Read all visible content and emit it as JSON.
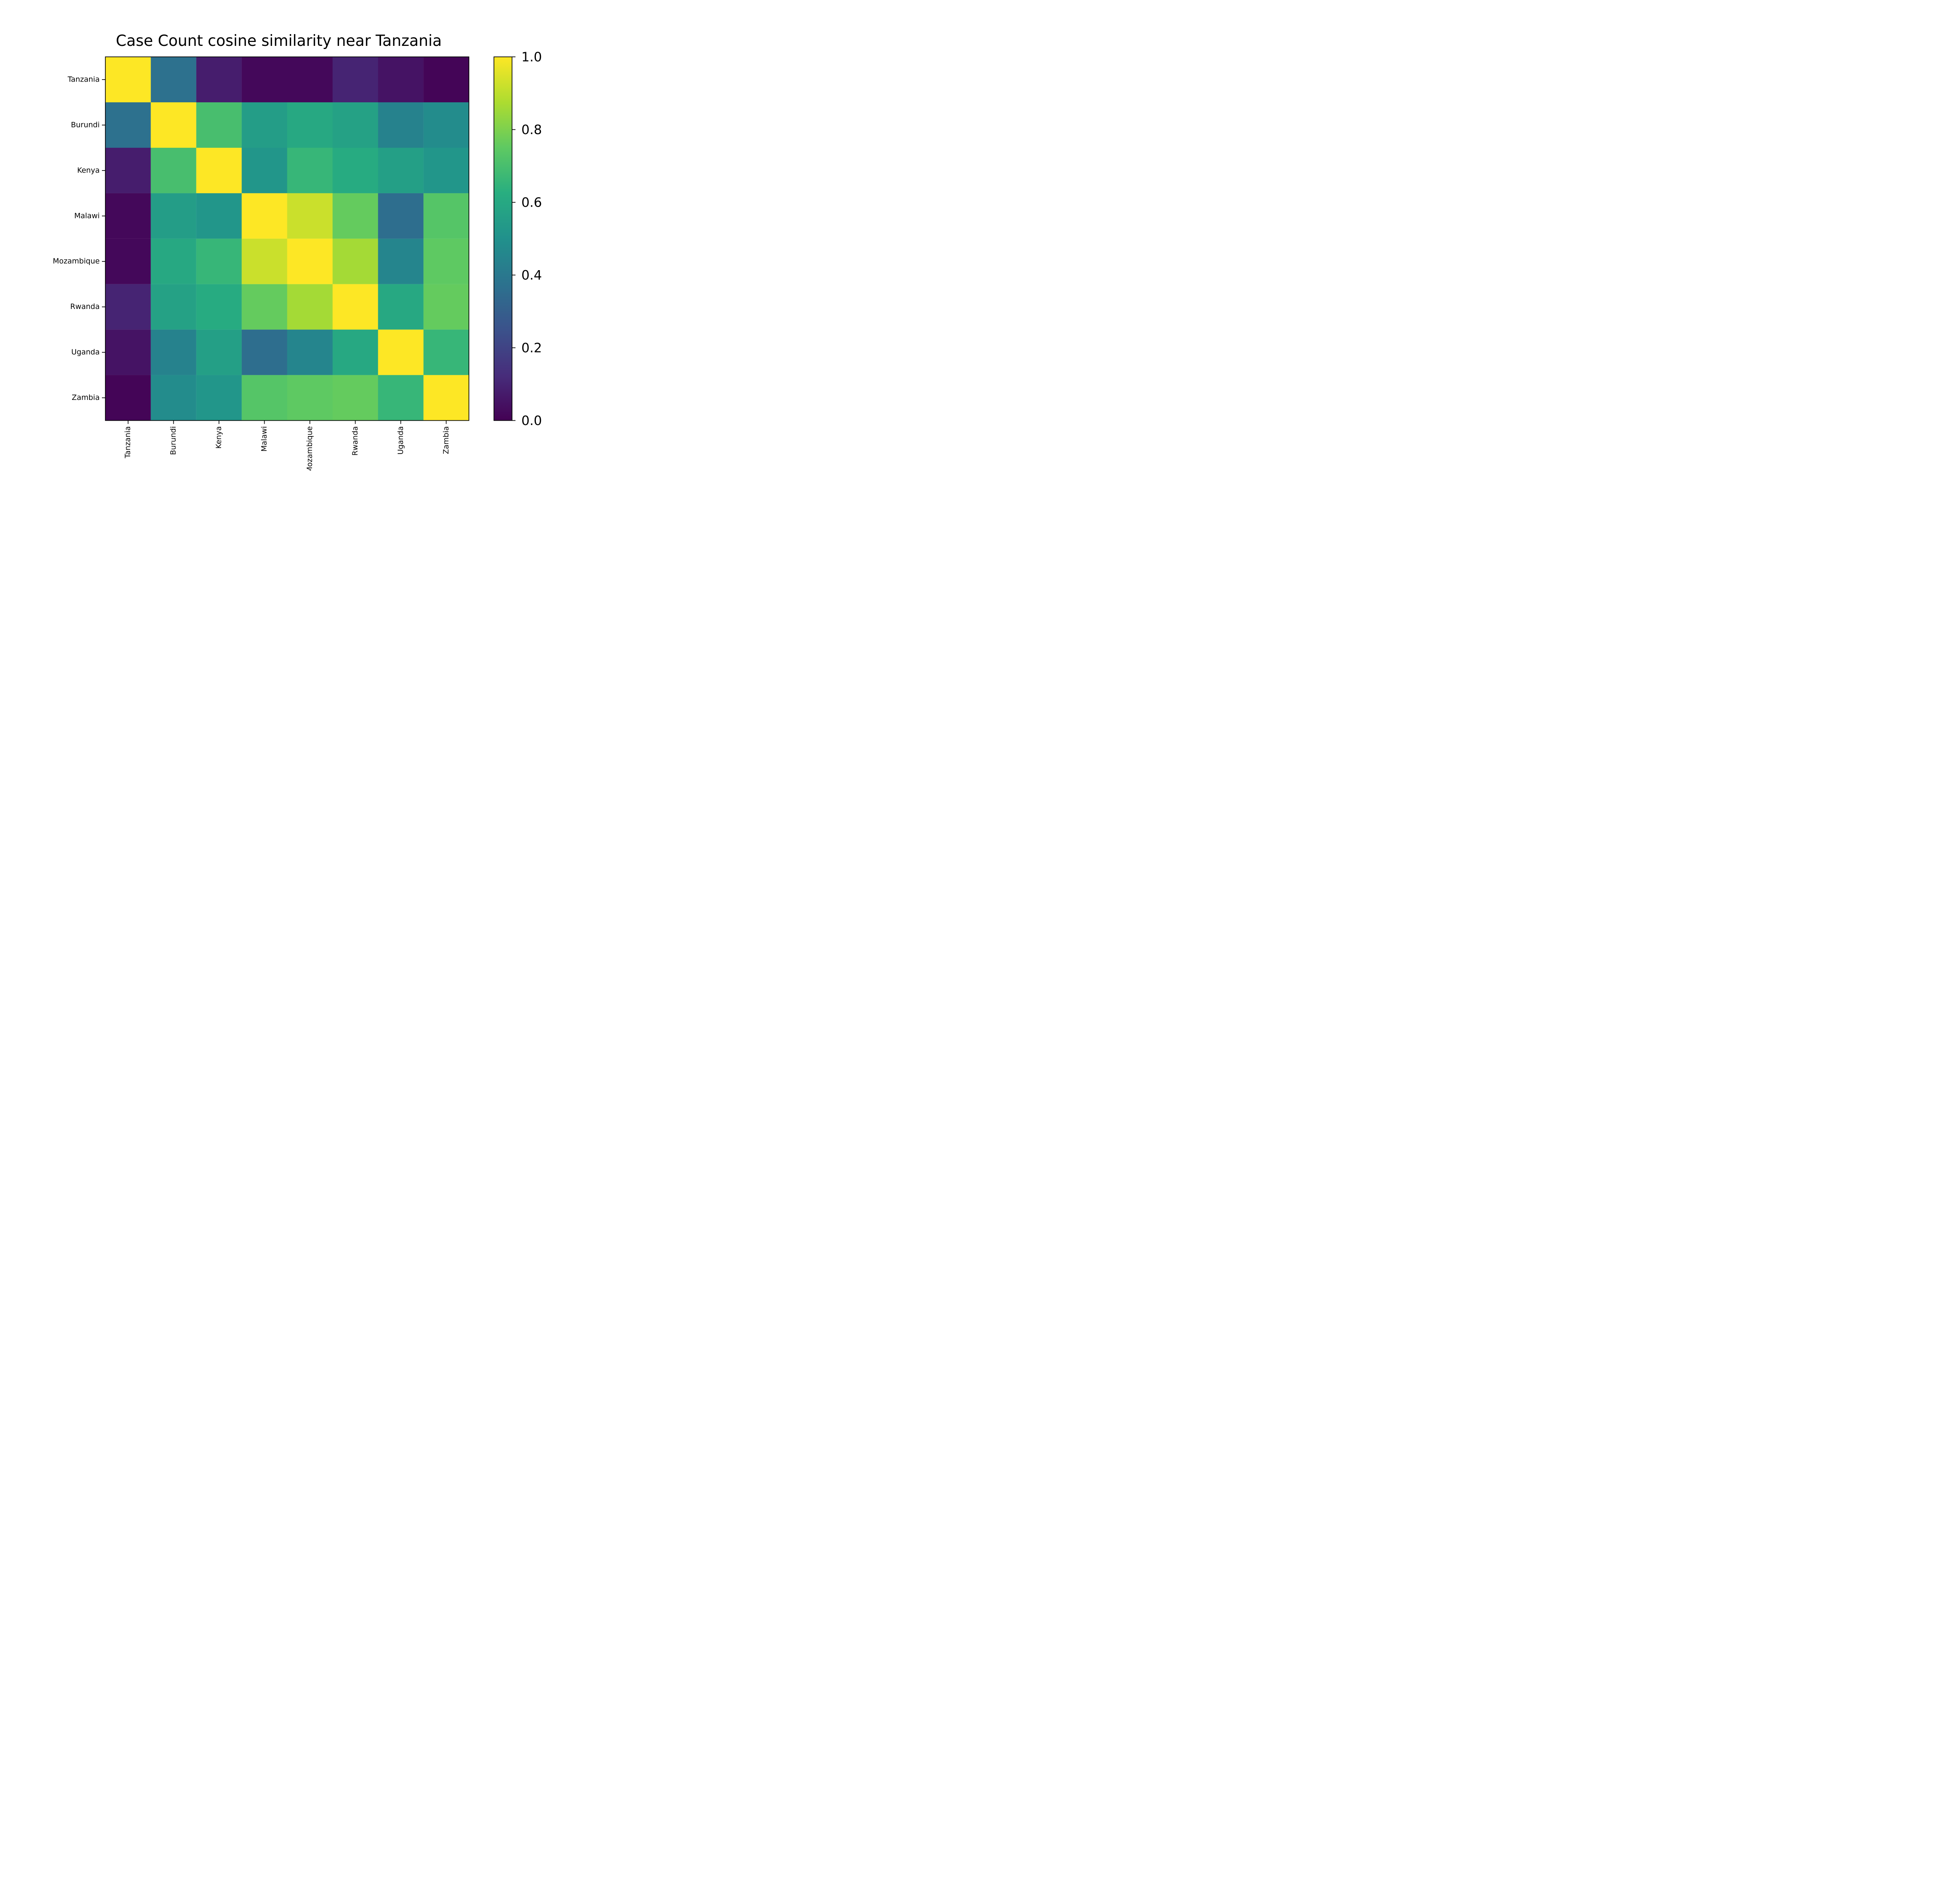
{
  "chart_data": {
    "type": "heatmap",
    "title": "Case Count cosine similarity near Tanzania",
    "row_labels": [
      "Tanzania",
      "Burundi",
      "Kenya",
      "Malawi",
      "Mozambique",
      "Rwanda",
      "Uganda",
      "Zambia"
    ],
    "col_labels": [
      "Tanzania",
      "Burundi",
      "Kenya",
      "Malawi",
      "Mozambique",
      "Rwanda",
      "Uganda",
      "Zambia"
    ],
    "matrix": [
      [
        1.0,
        0.37,
        0.08,
        0.02,
        0.02,
        0.1,
        0.05,
        0.01
      ],
      [
        0.37,
        1.0,
        0.7,
        0.55,
        0.6,
        0.57,
        0.44,
        0.48
      ],
      [
        0.08,
        0.7,
        1.0,
        0.52,
        0.66,
        0.61,
        0.56,
        0.52
      ],
      [
        0.02,
        0.55,
        0.52,
        1.0,
        0.92,
        0.76,
        0.36,
        0.73
      ],
      [
        0.02,
        0.6,
        0.66,
        0.92,
        1.0,
        0.86,
        0.45,
        0.75
      ],
      [
        0.1,
        0.57,
        0.61,
        0.76,
        0.86,
        1.0,
        0.6,
        0.76
      ],
      [
        0.05,
        0.44,
        0.56,
        0.36,
        0.45,
        0.6,
        1.0,
        0.66
      ],
      [
        0.01,
        0.48,
        0.52,
        0.73,
        0.75,
        0.76,
        0.66,
        1.0
      ]
    ],
    "colormap": "viridis",
    "colorbar": {
      "min": 0.0,
      "max": 1.0,
      "ticks": [
        0.0,
        0.2,
        0.4,
        0.6,
        0.8,
        1.0
      ],
      "tick_labels": [
        "0.0",
        "0.2",
        "0.4",
        "0.6",
        "0.8",
        "1.0"
      ]
    },
    "grid": false,
    "xlabel": "",
    "ylabel": ""
  }
}
